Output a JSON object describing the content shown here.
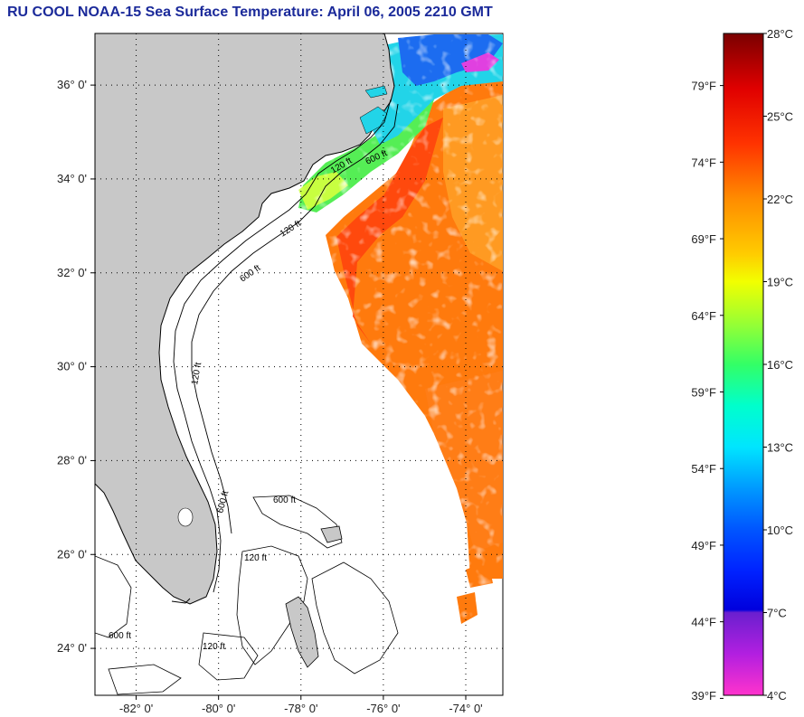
{
  "title": "RU COOL  NOAA-15  Sea Surface Temperature:  April 06, 2005 2210 GMT",
  "map": {
    "land_color": "#c8c8c8",
    "ocean_nodata_color": "#ffffff",
    "latitude_labels": [
      {
        "lat": 36,
        "label": "36° 0'"
      },
      {
        "lat": 34,
        "label": "34° 0'"
      },
      {
        "lat": 32,
        "label": "32° 0'"
      },
      {
        "lat": 30,
        "label": "30° 0'"
      },
      {
        "lat": 28,
        "label": "28° 0'"
      },
      {
        "lat": 26,
        "label": "26° 0'"
      },
      {
        "lat": 24,
        "label": "24° 0'"
      }
    ],
    "longitude_labels": [
      {
        "lon": -82,
        "label": "-82° 0'"
      },
      {
        "lon": -80,
        "label": "-80° 0'"
      },
      {
        "lon": -78,
        "label": "-78° 0'"
      },
      {
        "lon": -76,
        "label": "-76° 0'"
      },
      {
        "lon": -74,
        "label": "-74° 0'"
      }
    ],
    "lat_range": [
      23.0,
      37.1
    ],
    "lon_range": [
      -83.0,
      -73.1
    ],
    "contour_labels": [
      "120 ft",
      "600 ft"
    ],
    "grid": "dotted"
  },
  "colorbar": {
    "fahrenheit_labels": [
      "79°F",
      "74°F",
      "69°F",
      "64°F",
      "59°F",
      "54°F",
      "49°F",
      "44°F",
      "39°F"
    ],
    "celsius_labels": [
      "28°C",
      "25°C",
      "22°C",
      "19°C",
      "16°C",
      "13°C",
      "10°C",
      "7°C",
      "4°C"
    ],
    "celsius_range": [
      4,
      28
    ],
    "stops": [
      {
        "c": 28,
        "color": "#7a0000"
      },
      {
        "c": 26,
        "color": "#e00000"
      },
      {
        "c": 24,
        "color": "#ff3300"
      },
      {
        "c": 22,
        "color": "#ff8c00"
      },
      {
        "c": 20,
        "color": "#ffcc00"
      },
      {
        "c": 19,
        "color": "#f2ff00"
      },
      {
        "c": 17.5,
        "color": "#99ff33"
      },
      {
        "c": 16,
        "color": "#33ff66"
      },
      {
        "c": 14.5,
        "color": "#00ffcc"
      },
      {
        "c": 13,
        "color": "#00e5ff"
      },
      {
        "c": 11.5,
        "color": "#0099ff"
      },
      {
        "c": 10,
        "color": "#0055ff"
      },
      {
        "c": 8.5,
        "color": "#0022ff"
      },
      {
        "c": 7.1,
        "color": "#0000dd"
      },
      {
        "c": 7.0,
        "color": "#6a1fcf"
      },
      {
        "c": 5.5,
        "color": "#b21fe0"
      },
      {
        "c": 4,
        "color": "#ff33cc"
      }
    ]
  }
}
